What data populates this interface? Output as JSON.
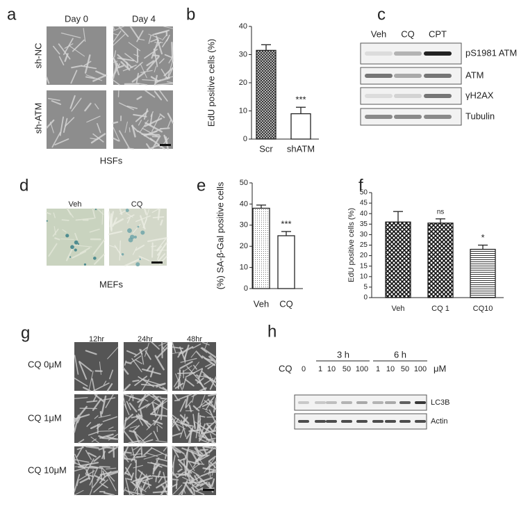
{
  "panel_labels": [
    "a",
    "b",
    "c",
    "d",
    "e",
    "f",
    "g",
    "h"
  ],
  "panel_a": {
    "columns": [
      "Day 0",
      "Day 4"
    ],
    "rows": [
      "sh-NC",
      "sh-ATM"
    ],
    "caption": "HSFs"
  },
  "panel_c": {
    "columns": [
      "Veh",
      "CQ",
      "CPT"
    ],
    "rows": [
      "pS1981 ATM",
      "ATM",
      "γH2AX",
      "Tubulin"
    ]
  },
  "panel_d": {
    "columns": [
      "Veh",
      "CQ"
    ],
    "caption": "MEFs"
  },
  "panel_g": {
    "columns": [
      "12hr",
      "24hr",
      "48hr"
    ],
    "rows": [
      "CQ  0μM",
      "CQ  1μM",
      "CQ  10μM"
    ]
  },
  "panel_h": {
    "groups": [
      "3 h",
      "6 h"
    ],
    "treatment": "CQ",
    "doses": [
      "0",
      "1",
      "10",
      "50",
      "100",
      "1",
      "10",
      "50",
      "100"
    ],
    "unit": "μM",
    "rows": [
      "LC3B",
      "Actin"
    ]
  },
  "chart_data": [
    {
      "type": "bar",
      "y_label": "EdU positive cells (%)",
      "categories": [
        "Scr",
        "shATM"
      ],
      "values": [
        31.5,
        9
      ],
      "errors": [
        2,
        2.3
      ],
      "annotations": [
        null,
        "***"
      ],
      "ylim": [
        0,
        40
      ],
      "yticks": [
        0,
        10,
        20,
        30,
        40
      ]
    },
    {
      "type": "bar",
      "y_label": "(%) SA-β-Gal positive cells",
      "categories": [
        "Veh",
        "CQ"
      ],
      "values": [
        38,
        25
      ],
      "errors": [
        1.5,
        2
      ],
      "annotations": [
        null,
        "***"
      ],
      "ylim": [
        0,
        50
      ],
      "yticks": [
        0,
        10,
        20,
        30,
        40,
        50
      ]
    },
    {
      "type": "bar",
      "y_label": "EdU positive cells (%)",
      "categories": [
        "Veh",
        "CQ 1",
        "CQ10"
      ],
      "values": [
        36,
        35.5,
        23
      ],
      "errors": [
        5,
        2,
        2
      ],
      "annotations": [
        null,
        "ns",
        "*"
      ],
      "ylim": [
        0,
        50
      ],
      "yticks": [
        0,
        5,
        10,
        15,
        20,
        25,
        30,
        35,
        40,
        45,
        50
      ]
    }
  ]
}
